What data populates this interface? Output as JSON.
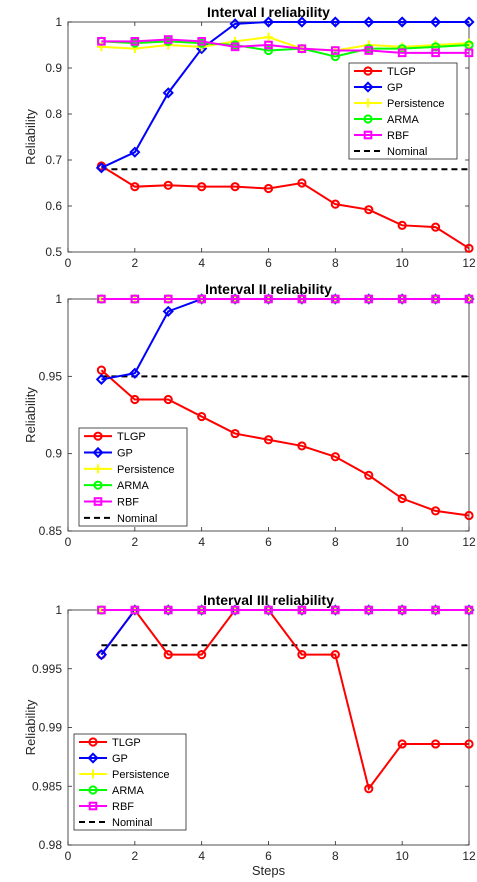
{
  "chart_data": [
    {
      "type": "line",
      "title": "Interval I reliability",
      "xlabel": "",
      "ylabel": "Reliability",
      "xlim": [
        0,
        12
      ],
      "ylim": [
        0.5,
        1
      ],
      "xticks": [
        0,
        2,
        4,
        6,
        8,
        10,
        12
      ],
      "yticks": [
        0.5,
        0.6,
        0.7,
        0.8,
        0.9,
        1
      ],
      "ytick_labels": [
        "0.5",
        "0.6",
        "0.7",
        "0.8",
        "0.9",
        "1"
      ],
      "legend_position": "top-right",
      "grid": false,
      "x": [
        1,
        2,
        3,
        4,
        5,
        6,
        7,
        8,
        9,
        10,
        11,
        12
      ],
      "series": [
        {
          "name": "TLGP",
          "color": "#ff0000",
          "marker": "circle",
          "values": [
            0.687,
            0.642,
            0.645,
            0.642,
            0.642,
            0.638,
            0.65,
            0.604,
            0.592,
            0.558,
            0.554,
            0.508
          ]
        },
        {
          "name": "GP",
          "color": "#0000ff",
          "marker": "diamond",
          "values": [
            0.683,
            0.717,
            0.846,
            0.942,
            0.996,
            1.0,
            1.0,
            1.0,
            1.0,
            1.0,
            1.0,
            1.0
          ]
        },
        {
          "name": "Persistence",
          "color": "#ffff00",
          "marker": "star",
          "values": [
            0.946,
            0.942,
            0.95,
            0.946,
            0.958,
            0.967,
            0.942,
            0.938,
            0.95,
            0.946,
            0.95,
            0.954
          ]
        },
        {
          "name": "ARMA",
          "color": "#00ff00",
          "marker": "circle",
          "values": [
            0.958,
            0.954,
            0.958,
            0.954,
            0.95,
            0.938,
            0.942,
            0.925,
            0.942,
            0.942,
            0.946,
            0.95
          ]
        },
        {
          "name": "RBF",
          "color": "#ff00ff",
          "marker": "square",
          "values": [
            0.958,
            0.958,
            0.962,
            0.958,
            0.946,
            0.95,
            0.942,
            0.938,
            0.938,
            0.933,
            0.933,
            0.933
          ]
        },
        {
          "name": "Nominal",
          "color": "#000000",
          "dashed": true,
          "values": [
            0.68,
            0.68,
            0.68,
            0.68,
            0.68,
            0.68,
            0.68,
            0.68,
            0.68,
            0.68,
            0.68,
            0.68
          ]
        }
      ]
    },
    {
      "type": "line",
      "title": "Interval II reliability",
      "xlabel": "",
      "ylabel": "Reliability",
      "xlim": [
        0,
        12
      ],
      "ylim": [
        0.85,
        1
      ],
      "xticks": [
        0,
        2,
        4,
        6,
        8,
        10,
        12
      ],
      "yticks": [
        0.85,
        0.9,
        0.95,
        1
      ],
      "ytick_labels": [
        "0.85",
        "0.9",
        "0.95",
        "1"
      ],
      "legend_position": "bottom-left",
      "grid": false,
      "x": [
        1,
        2,
        3,
        4,
        5,
        6,
        7,
        8,
        9,
        10,
        11,
        12
      ],
      "series": [
        {
          "name": "TLGP",
          "color": "#ff0000",
          "marker": "circle",
          "values": [
            0.954,
            0.935,
            0.935,
            0.924,
            0.913,
            0.909,
            0.905,
            0.898,
            0.886,
            0.871,
            0.863,
            0.86
          ]
        },
        {
          "name": "GP",
          "color": "#0000ff",
          "marker": "diamond",
          "values": [
            0.948,
            0.952,
            0.992,
            1.0,
            1.0,
            1.0,
            1.0,
            1.0,
            1.0,
            1.0,
            1.0,
            1.0
          ]
        },
        {
          "name": "Persistence",
          "color": "#ffff00",
          "marker": "star",
          "values": [
            1.0,
            1.0,
            1.0,
            1.0,
            1.0,
            1.0,
            1.0,
            1.0,
            1.0,
            1.0,
            1.0,
            1.0
          ]
        },
        {
          "name": "ARMA",
          "color": "#00ff00",
          "marker": "circle",
          "values": [
            1.0,
            1.0,
            1.0,
            1.0,
            1.0,
            1.0,
            1.0,
            1.0,
            1.0,
            1.0,
            1.0,
            1.0
          ]
        },
        {
          "name": "RBF",
          "color": "#ff00ff",
          "marker": "square",
          "values": [
            1.0,
            1.0,
            1.0,
            1.0,
            1.0,
            1.0,
            1.0,
            1.0,
            1.0,
            1.0,
            1.0,
            1.0
          ]
        },
        {
          "name": "Nominal",
          "color": "#000000",
          "dashed": true,
          "values": [
            0.95,
            0.95,
            0.95,
            0.95,
            0.95,
            0.95,
            0.95,
            0.95,
            0.95,
            0.95,
            0.95,
            0.95
          ]
        }
      ]
    },
    {
      "type": "line",
      "title": "Interval III reliability",
      "xlabel": "Steps",
      "ylabel": "Reliability",
      "xlim": [
        0,
        12
      ],
      "ylim": [
        0.98,
        1
      ],
      "xticks": [
        0,
        2,
        4,
        6,
        8,
        10,
        12
      ],
      "yticks": [
        0.98,
        0.985,
        0.99,
        0.995,
        1
      ],
      "ytick_labels": [
        "0.98",
        "0.985",
        "0.99",
        "0.995",
        "1"
      ],
      "legend_position": "bottom-left",
      "grid": false,
      "x": [
        1,
        2,
        3,
        4,
        5,
        6,
        7,
        8,
        9,
        10,
        11,
        12
      ],
      "series": [
        {
          "name": "TLGP",
          "color": "#ff0000",
          "marker": "circle",
          "values": [
            0.9962,
            1.0,
            0.9962,
            0.9962,
            1.0,
            1.0,
            0.9962,
            0.9962,
            0.9848,
            0.9886,
            0.9886,
            0.9886
          ]
        },
        {
          "name": "GP",
          "color": "#0000ff",
          "marker": "diamond",
          "values": [
            0.9962,
            1.0,
            1.0,
            1.0,
            1.0,
            1.0,
            1.0,
            1.0,
            1.0,
            1.0,
            1.0,
            1.0
          ]
        },
        {
          "name": "Persistence",
          "color": "#ffff00",
          "marker": "star",
          "values": [
            1.0,
            1.0,
            1.0,
            1.0,
            1.0,
            1.0,
            1.0,
            1.0,
            1.0,
            1.0,
            1.0,
            1.0
          ]
        },
        {
          "name": "ARMA",
          "color": "#00ff00",
          "marker": "circle",
          "values": [
            1.0,
            1.0,
            1.0,
            1.0,
            1.0,
            1.0,
            1.0,
            1.0,
            1.0,
            1.0,
            1.0,
            1.0
          ]
        },
        {
          "name": "RBF",
          "color": "#ff00ff",
          "marker": "square",
          "values": [
            1.0,
            1.0,
            1.0,
            1.0,
            1.0,
            1.0,
            1.0,
            1.0,
            1.0,
            1.0,
            1.0,
            1.0
          ]
        },
        {
          "name": "Nominal",
          "color": "#000000",
          "dashed": true,
          "values": [
            0.997,
            0.997,
            0.997,
            0.997,
            0.997,
            0.997,
            0.997,
            0.997,
            0.997,
            0.997,
            0.997,
            0.997
          ]
        }
      ]
    }
  ]
}
